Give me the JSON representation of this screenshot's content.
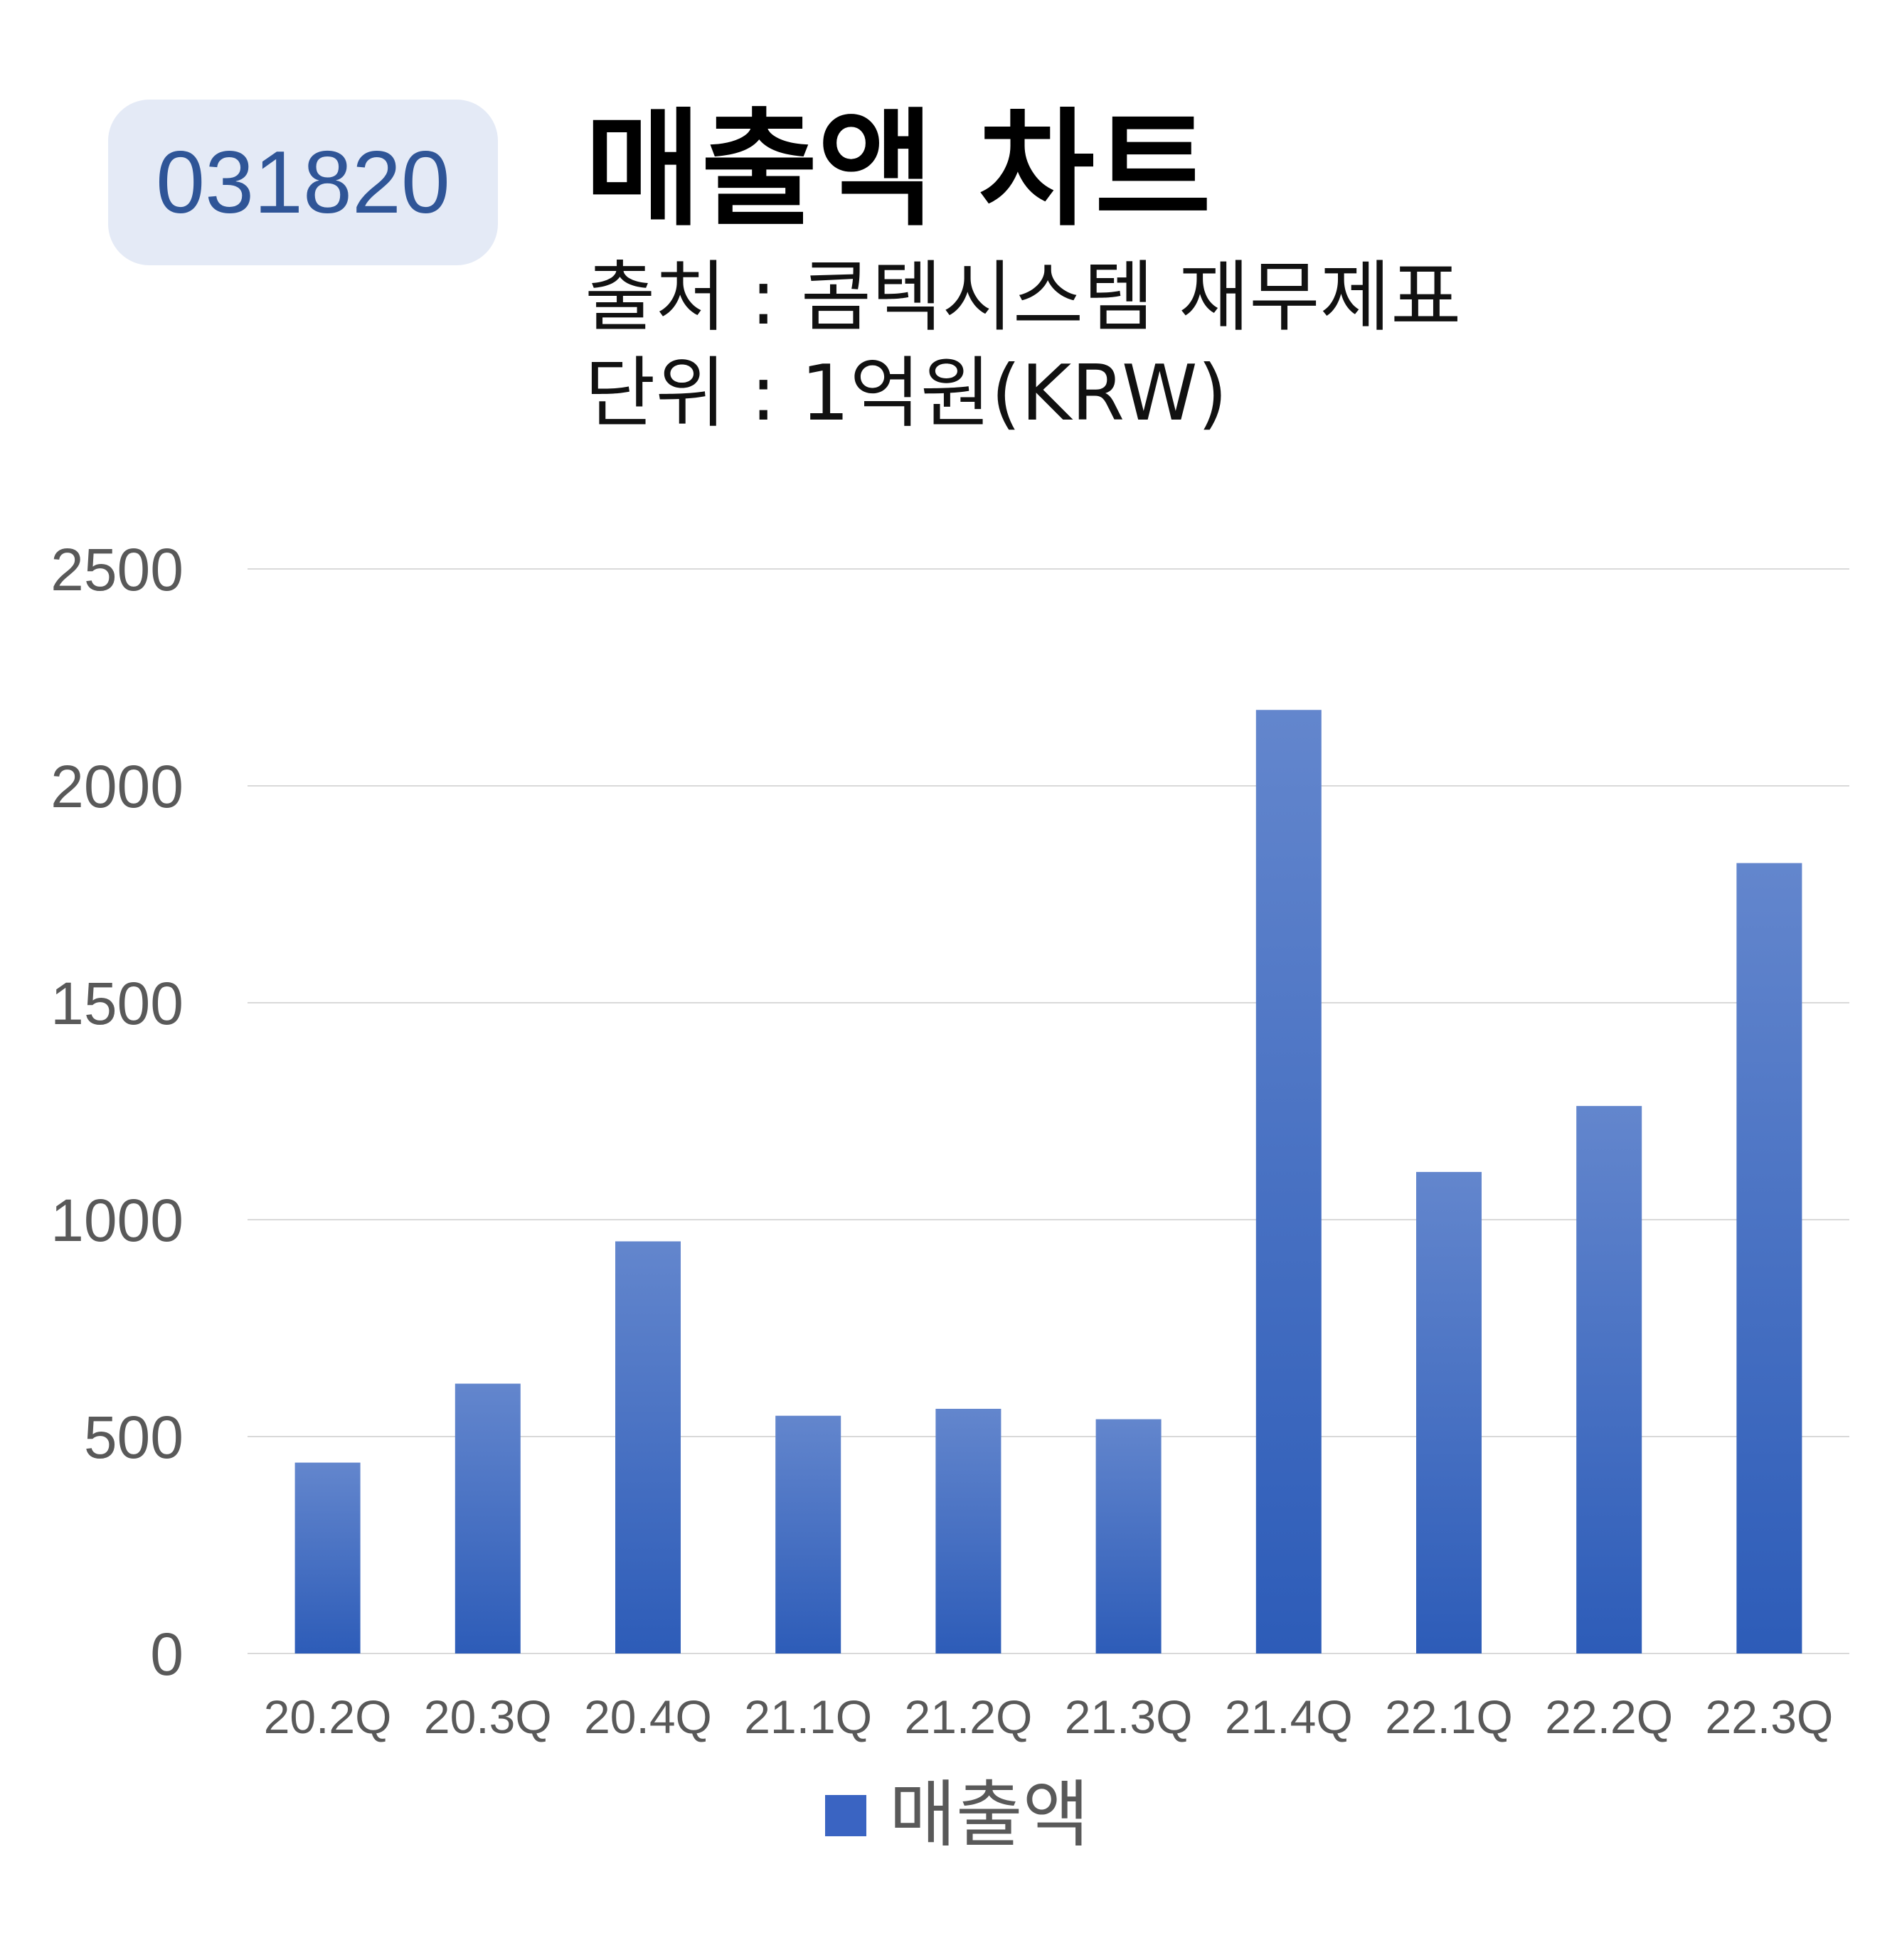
{
  "badge": {
    "code": "031820"
  },
  "header": {
    "title": "매출액 차트",
    "source": "출처 : 콤텍시스템 재무제표",
    "unit": "단위 : 1억원(KRW)"
  },
  "legend": {
    "label": "매출액"
  },
  "colors": {
    "bar": "#3a64c2",
    "bar_top": "#6386cd",
    "bar_bottom": "#2d5cb8",
    "grid": "#d9d9d9",
    "tick": "#595959"
  },
  "chart_data": {
    "type": "bar",
    "categories": [
      "20.2Q",
      "20.3Q",
      "20.4Q",
      "21.1Q",
      "21.2Q",
      "21.3Q",
      "21.4Q",
      "22.1Q",
      "22.2Q",
      "22.3Q"
    ],
    "series": [
      {
        "name": "매출액",
        "values": [
          440,
          622,
          950,
          548,
          564,
          540,
          2175,
          1110,
          1262,
          1822
        ]
      }
    ],
    "ylim": [
      0,
      2500
    ],
    "yticks": [
      0,
      500,
      1000,
      1500,
      2000,
      2500
    ],
    "grid": true,
    "legend_position": "bottom"
  }
}
